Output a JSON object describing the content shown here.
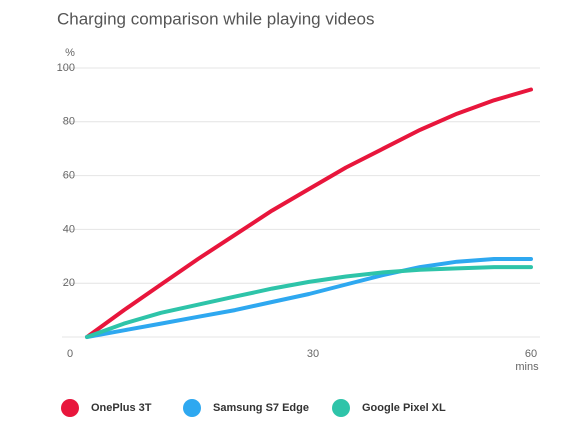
{
  "chart_data": {
    "type": "line",
    "title": "Charging comparison while playing videos",
    "y_label": "%",
    "x_label": "mins",
    "x": [
      0,
      5,
      10,
      15,
      20,
      25,
      30,
      35,
      40,
      45,
      50,
      55,
      60
    ],
    "series": [
      {
        "name": "OnePlus 3T",
        "color": "#e8163c",
        "values": [
          0,
          10,
          19.5,
          29,
          38,
          47,
          55,
          63,
          70,
          77,
          83,
          88,
          92
        ]
      },
      {
        "name": "Samsung S7 Edge",
        "color": "#2ea8f0",
        "values": [
          0,
          2.5,
          5,
          7.5,
          10,
          13,
          16,
          19.5,
          23,
          26,
          28,
          29,
          29
        ]
      },
      {
        "name": "Google Pixel XL",
        "color": "#2ec4a9",
        "values": [
          0,
          5,
          9,
          12,
          15,
          18,
          20.5,
          22.5,
          24,
          25,
          25.5,
          26,
          26
        ]
      }
    ],
    "xlim": [
      0,
      60
    ],
    "xticks": [
      0,
      30,
      60
    ],
    "ylim": [
      0,
      100
    ],
    "yticks": [
      20,
      40,
      60,
      80,
      100
    ],
    "grid": true,
    "legend": "bottom"
  }
}
